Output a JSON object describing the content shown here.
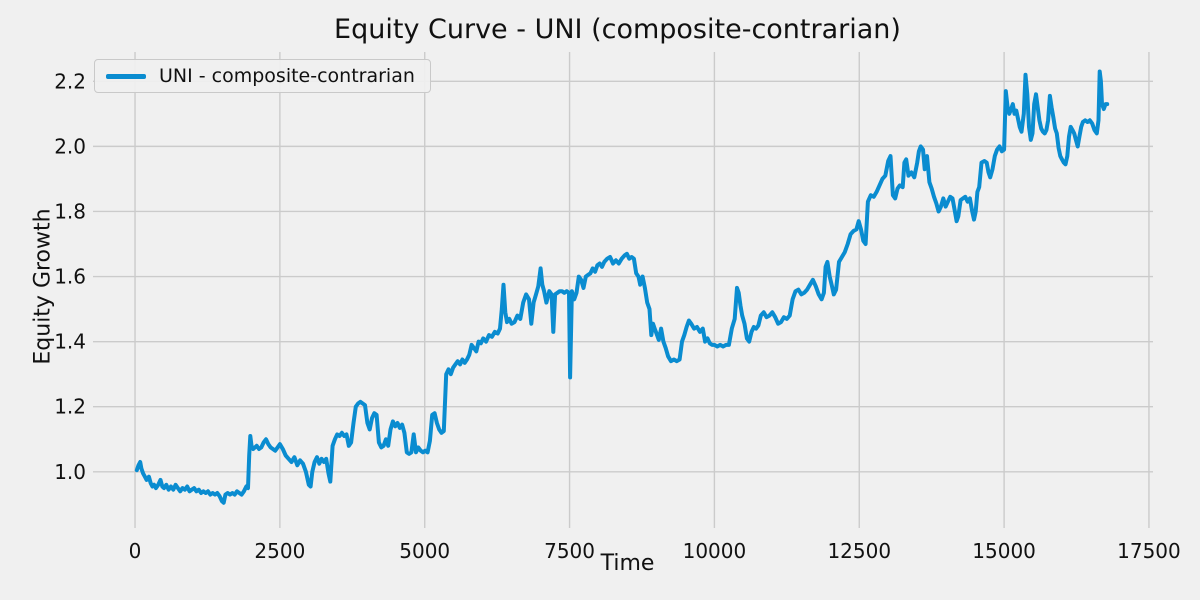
{
  "figure": {
    "title": "Equity Curve - UNI (composite-contrarian)",
    "background_color": "#f0f0f0",
    "grid_color": "#cbcbcb",
    "text_color": "#111111"
  },
  "legend": {
    "label": "UNI - composite-contrarian",
    "position": "upper left",
    "swatch_color": "#0a8cd0"
  },
  "axes": {
    "xlabel": "Time",
    "ylabel": "Equity Growth",
    "xtick_labels": [
      "0",
      "2500",
      "5000",
      "7500",
      "10000",
      "12500",
      "15000",
      "17500"
    ],
    "ytick_labels": [
      "1.0",
      "1.2",
      "1.4",
      "1.6",
      "1.8",
      "2.0",
      "2.2"
    ]
  },
  "chart_data": {
    "type": "line",
    "title": "Equity Curve - UNI (composite-contrarian)",
    "xlabel": "Time",
    "ylabel": "Equity Growth",
    "legend_position": "upper left",
    "grid": true,
    "xlim": [
      -570,
      17570
    ],
    "ylim": [
      0.855,
      2.29
    ],
    "xticks": [
      0,
      2500,
      5000,
      7500,
      10000,
      12500,
      15000,
      17500
    ],
    "yticks": [
      1.0,
      1.2,
      1.4,
      1.6,
      1.8,
      2.0,
      2.2
    ],
    "line_color": "#0a8cd0",
    "line_width": 4,
    "series": [
      {
        "name": "UNI - composite-contrarian",
        "x": [
          30,
          60,
          90,
          110,
          140,
          170,
          200,
          240,
          270,
          300,
          330,
          360,
          400,
          440,
          470,
          500,
          540,
          580,
          620,
          660,
          700,
          740,
          780,
          820,
          860,
          900,
          940,
          980,
          1020,
          1060,
          1100,
          1140,
          1180,
          1220,
          1260,
          1300,
          1340,
          1380,
          1420,
          1460,
          1500,
          1530,
          1560,
          1600,
          1640,
          1680,
          1720,
          1760,
          1800,
          1840,
          1880,
          1920,
          1950,
          1970,
          1990,
          2010,
          2040,
          2070,
          2100,
          2140,
          2180,
          2220,
          2260,
          2300,
          2340,
          2380,
          2420,
          2460,
          2500,
          2550,
          2600,
          2650,
          2700,
          2750,
          2800,
          2850,
          2900,
          2950,
          3000,
          3030,
          3060,
          3100,
          3140,
          3180,
          3220,
          3260,
          3300,
          3340,
          3370,
          3410,
          3450,
          3490,
          3530,
          3570,
          3610,
          3650,
          3690,
          3730,
          3770,
          3810,
          3850,
          3890,
          3930,
          3970,
          4010,
          4050,
          4090,
          4130,
          4170,
          4210,
          4250,
          4290,
          4330,
          4370,
          4410,
          4450,
          4490,
          4530,
          4570,
          4610,
          4650,
          4690,
          4730,
          4770,
          4810,
          4850,
          4890,
          4930,
          4970,
          5010,
          5050,
          5090,
          5130,
          5170,
          5210,
          5250,
          5290,
          5330,
          5370,
          5410,
          5450,
          5490,
          5530,
          5570,
          5610,
          5650,
          5690,
          5730,
          5770,
          5810,
          5850,
          5890,
          5930,
          5970,
          6010,
          6060,
          6110,
          6160,
          6210,
          6260,
          6300,
          6330,
          6360,
          6390,
          6420,
          6460,
          6500,
          6550,
          6600,
          6650,
          6700,
          6750,
          6800,
          6840,
          6880,
          6920,
          6960,
          7000,
          7030,
          7060,
          7100,
          7150,
          7190,
          7220,
          7250,
          7290,
          7330,
          7370,
          7410,
          7450,
          7490,
          7510,
          7540,
          7580,
          7620,
          7660,
          7700,
          7740,
          7780,
          7820,
          7860,
          7900,
          7940,
          7980,
          8020,
          8060,
          8100,
          8150,
          8200,
          8250,
          8300,
          8350,
          8400,
          8450,
          8490,
          8530,
          8570,
          8610,
          8650,
          8690,
          8720,
          8760,
          8800,
          8840,
          8880,
          8910,
          8940,
          8970,
          9000,
          9040,
          9080,
          9120,
          9160,
          9200,
          9250,
          9300,
          9350,
          9400,
          9440,
          9480,
          9520,
          9560,
          9600,
          9650,
          9700,
          9750,
          9800,
          9840,
          9880,
          9920,
          9960,
          10000,
          10050,
          10100,
          10150,
          10200,
          10250,
          10300,
          10350,
          10390,
          10420,
          10450,
          10480,
          10520,
          10560,
          10600,
          10640,
          10680,
          10720,
          10760,
          10800,
          10850,
          10900,
          10950,
          11000,
          11050,
          11100,
          11150,
          11200,
          11250,
          11300,
          11350,
          11400,
          11450,
          11500,
          11550,
          11600,
          11650,
          11700,
          11750,
          11800,
          11850,
          11890,
          11920,
          11950,
          11990,
          12030,
          12060,
          12100,
          12150,
          12200,
          12250,
          12300,
          12350,
          12400,
          12450,
          12490,
          12530,
          12570,
          12610,
          12650,
          12700,
          12750,
          12800,
          12850,
          12900,
          12950,
          13000,
          13040,
          13080,
          13120,
          13160,
          13200,
          13250,
          13280,
          13310,
          13350,
          13400,
          13450,
          13500,
          13530,
          13560,
          13600,
          13630,
          13670,
          13710,
          13750,
          13790,
          13830,
          13870,
          13910,
          13950,
          13990,
          14030,
          14070,
          14110,
          14150,
          14180,
          14210,
          14250,
          14290,
          14330,
          14370,
          14410,
          14450,
          14480,
          14510,
          14540,
          14570,
          14610,
          14660,
          14700,
          14730,
          14760,
          14800,
          14840,
          14880,
          14920,
          14960,
          15000,
          15030,
          15060,
          15090,
          15120,
          15150,
          15180,
          15210,
          15240,
          15270,
          15300,
          15340,
          15370,
          15400,
          15430,
          15460,
          15490,
          15520,
          15550,
          15580,
          15610,
          15640,
          15670,
          15700,
          15730,
          15760,
          15790,
          15820,
          15850,
          15880,
          15910,
          15940,
          15970,
          16000,
          16030,
          16060,
          16090,
          16120,
          16150,
          16180,
          16210,
          16240,
          16270,
          16300,
          16330,
          16360,
          16400,
          16440,
          16480,
          16520,
          16560,
          16600,
          16630,
          16650,
          16670,
          16690,
          16720,
          16750,
          16780
        ],
        "y": [
          1.005,
          1.02,
          1.03,
          1.01,
          0.995,
          0.985,
          0.975,
          0.985,
          0.965,
          0.955,
          0.96,
          0.95,
          0.96,
          0.975,
          0.955,
          0.95,
          0.96,
          0.945,
          0.955,
          0.945,
          0.96,
          0.95,
          0.94,
          0.95,
          0.945,
          0.955,
          0.94,
          0.945,
          0.95,
          0.94,
          0.945,
          0.935,
          0.94,
          0.935,
          0.94,
          0.93,
          0.935,
          0.93,
          0.935,
          0.925,
          0.91,
          0.905,
          0.93,
          0.935,
          0.93,
          0.935,
          0.93,
          0.94,
          0.935,
          0.93,
          0.94,
          0.955,
          0.95,
          1.05,
          1.11,
          1.08,
          1.07,
          1.075,
          1.08,
          1.07,
          1.075,
          1.09,
          1.1,
          1.085,
          1.075,
          1.07,
          1.065,
          1.075,
          1.085,
          1.07,
          1.05,
          1.04,
          1.03,
          1.045,
          1.02,
          1.035,
          1.025,
          1.0,
          0.96,
          0.955,
          1.0,
          1.03,
          1.045,
          1.025,
          1.04,
          1.03,
          1.04,
          0.995,
          0.97,
          1.08,
          1.1,
          1.115,
          1.11,
          1.12,
          1.11,
          1.115,
          1.08,
          1.09,
          1.15,
          1.2,
          1.21,
          1.215,
          1.21,
          1.205,
          1.15,
          1.13,
          1.165,
          1.18,
          1.175,
          1.09,
          1.075,
          1.08,
          1.1,
          1.08,
          1.13,
          1.155,
          1.14,
          1.15,
          1.135,
          1.145,
          1.12,
          1.06,
          1.055,
          1.06,
          1.115,
          1.06,
          1.075,
          1.065,
          1.06,
          1.065,
          1.06,
          1.095,
          1.175,
          1.18,
          1.15,
          1.13,
          1.12,
          1.125,
          1.3,
          1.315,
          1.3,
          1.32,
          1.33,
          1.34,
          1.33,
          1.345,
          1.335,
          1.345,
          1.36,
          1.39,
          1.38,
          1.37,
          1.4,
          1.395,
          1.41,
          1.4,
          1.42,
          1.415,
          1.43,
          1.425,
          1.44,
          1.5,
          1.575,
          1.49,
          1.46,
          1.47,
          1.455,
          1.46,
          1.48,
          1.47,
          1.52,
          1.545,
          1.53,
          1.455,
          1.52,
          1.545,
          1.57,
          1.625,
          1.575,
          1.555,
          1.52,
          1.555,
          1.545,
          1.43,
          1.545,
          1.55,
          1.555,
          1.555,
          1.55,
          1.555,
          1.55,
          1.29,
          1.555,
          1.53,
          1.55,
          1.6,
          1.59,
          1.565,
          1.6,
          1.605,
          1.61,
          1.625,
          1.615,
          1.635,
          1.64,
          1.63,
          1.645,
          1.655,
          1.66,
          1.64,
          1.65,
          1.64,
          1.655,
          1.665,
          1.67,
          1.655,
          1.66,
          1.655,
          1.61,
          1.6,
          1.575,
          1.6,
          1.565,
          1.52,
          1.5,
          1.42,
          1.455,
          1.44,
          1.425,
          1.405,
          1.44,
          1.4,
          1.38,
          1.355,
          1.34,
          1.345,
          1.34,
          1.345,
          1.4,
          1.42,
          1.445,
          1.465,
          1.455,
          1.44,
          1.445,
          1.43,
          1.44,
          1.4,
          1.41,
          1.395,
          1.39,
          1.39,
          1.385,
          1.39,
          1.385,
          1.39,
          1.39,
          1.44,
          1.47,
          1.565,
          1.55,
          1.51,
          1.48,
          1.455,
          1.41,
          1.4,
          1.43,
          1.445,
          1.44,
          1.45,
          1.48,
          1.49,
          1.475,
          1.48,
          1.49,
          1.475,
          1.455,
          1.46,
          1.475,
          1.47,
          1.48,
          1.53,
          1.555,
          1.56,
          1.545,
          1.55,
          1.56,
          1.575,
          1.59,
          1.57,
          1.545,
          1.53,
          1.55,
          1.63,
          1.645,
          1.6,
          1.57,
          1.545,
          1.56,
          1.645,
          1.66,
          1.675,
          1.7,
          1.73,
          1.74,
          1.745,
          1.77,
          1.745,
          1.71,
          1.7,
          1.83,
          1.85,
          1.845,
          1.86,
          1.88,
          1.9,
          1.91,
          1.955,
          1.97,
          1.85,
          1.84,
          1.87,
          1.88,
          1.875,
          1.95,
          1.96,
          1.91,
          1.92,
          1.905,
          1.95,
          1.985,
          2.0,
          1.99,
          1.93,
          1.97,
          1.89,
          1.87,
          1.845,
          1.825,
          1.8,
          1.815,
          1.84,
          1.815,
          1.83,
          1.845,
          1.84,
          1.8,
          1.77,
          1.785,
          1.835,
          1.84,
          1.845,
          1.83,
          1.84,
          1.8,
          1.775,
          1.8,
          1.86,
          1.875,
          1.95,
          1.955,
          1.95,
          1.92,
          1.905,
          1.93,
          1.97,
          1.99,
          2.0,
          1.985,
          1.99,
          2.17,
          2.12,
          2.1,
          2.115,
          2.13,
          2.1,
          2.11,
          2.085,
          2.06,
          2.045,
          2.1,
          2.22,
          2.16,
          2.06,
          2.02,
          2.04,
          2.13,
          2.16,
          2.12,
          2.08,
          2.055,
          2.045,
          2.04,
          2.05,
          2.08,
          2.155,
          2.12,
          2.09,
          2.055,
          2.04,
          1.995,
          1.97,
          1.96,
          1.95,
          1.945,
          1.97,
          2.03,
          2.06,
          2.05,
          2.04,
          2.02,
          2.0,
          2.03,
          2.06,
          2.075,
          2.08,
          2.075,
          2.08,
          2.07,
          2.05,
          2.04,
          2.08,
          2.23,
          2.2,
          2.13,
          2.115,
          2.13,
          2.13
        ]
      }
    ]
  }
}
